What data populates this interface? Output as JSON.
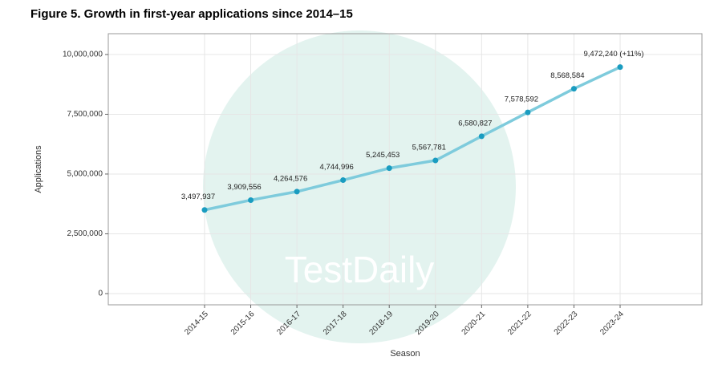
{
  "chart_data": {
    "type": "line",
    "title": "Figure 5. Growth in first-year applications since 2014–15",
    "x_label": "Season",
    "y_label": "Applications",
    "watermark": "TestDaily",
    "categories": [
      "2014-15",
      "2015-16",
      "2016-17",
      "2017-18",
      "2018-19",
      "2019-20",
      "2020-21",
      "2021-22",
      "2022-23",
      "2023-24"
    ],
    "series": [
      {
        "name": "Applications",
        "color": "#7ecbdc",
        "point_color": "#1a9cc0",
        "values": [
          3497937,
          3909556,
          4264576,
          4744996,
          5245453,
          5567781,
          6580827,
          7578592,
          8568584,
          9472240
        ],
        "value_labels": [
          "3,497,937",
          "3,909,556",
          "4,264,576",
          "4,744,996",
          "5,245,453",
          "5,567,781",
          "6,580,827",
          "7,578,592",
          "8,568,584",
          "9,472,240 (+11%)"
        ]
      }
    ],
    "ylim": [
      -470000,
      10870000
    ],
    "yticks": [
      {
        "value": 0,
        "label": "0"
      },
      {
        "value": 2500000,
        "label": "2,500,000"
      },
      {
        "value": 5000000,
        "label": "5,000,000"
      },
      {
        "value": 7500000,
        "label": "7,500,000"
      },
      {
        "value": 10000000,
        "label": "10,000,000"
      }
    ],
    "grid": true
  }
}
